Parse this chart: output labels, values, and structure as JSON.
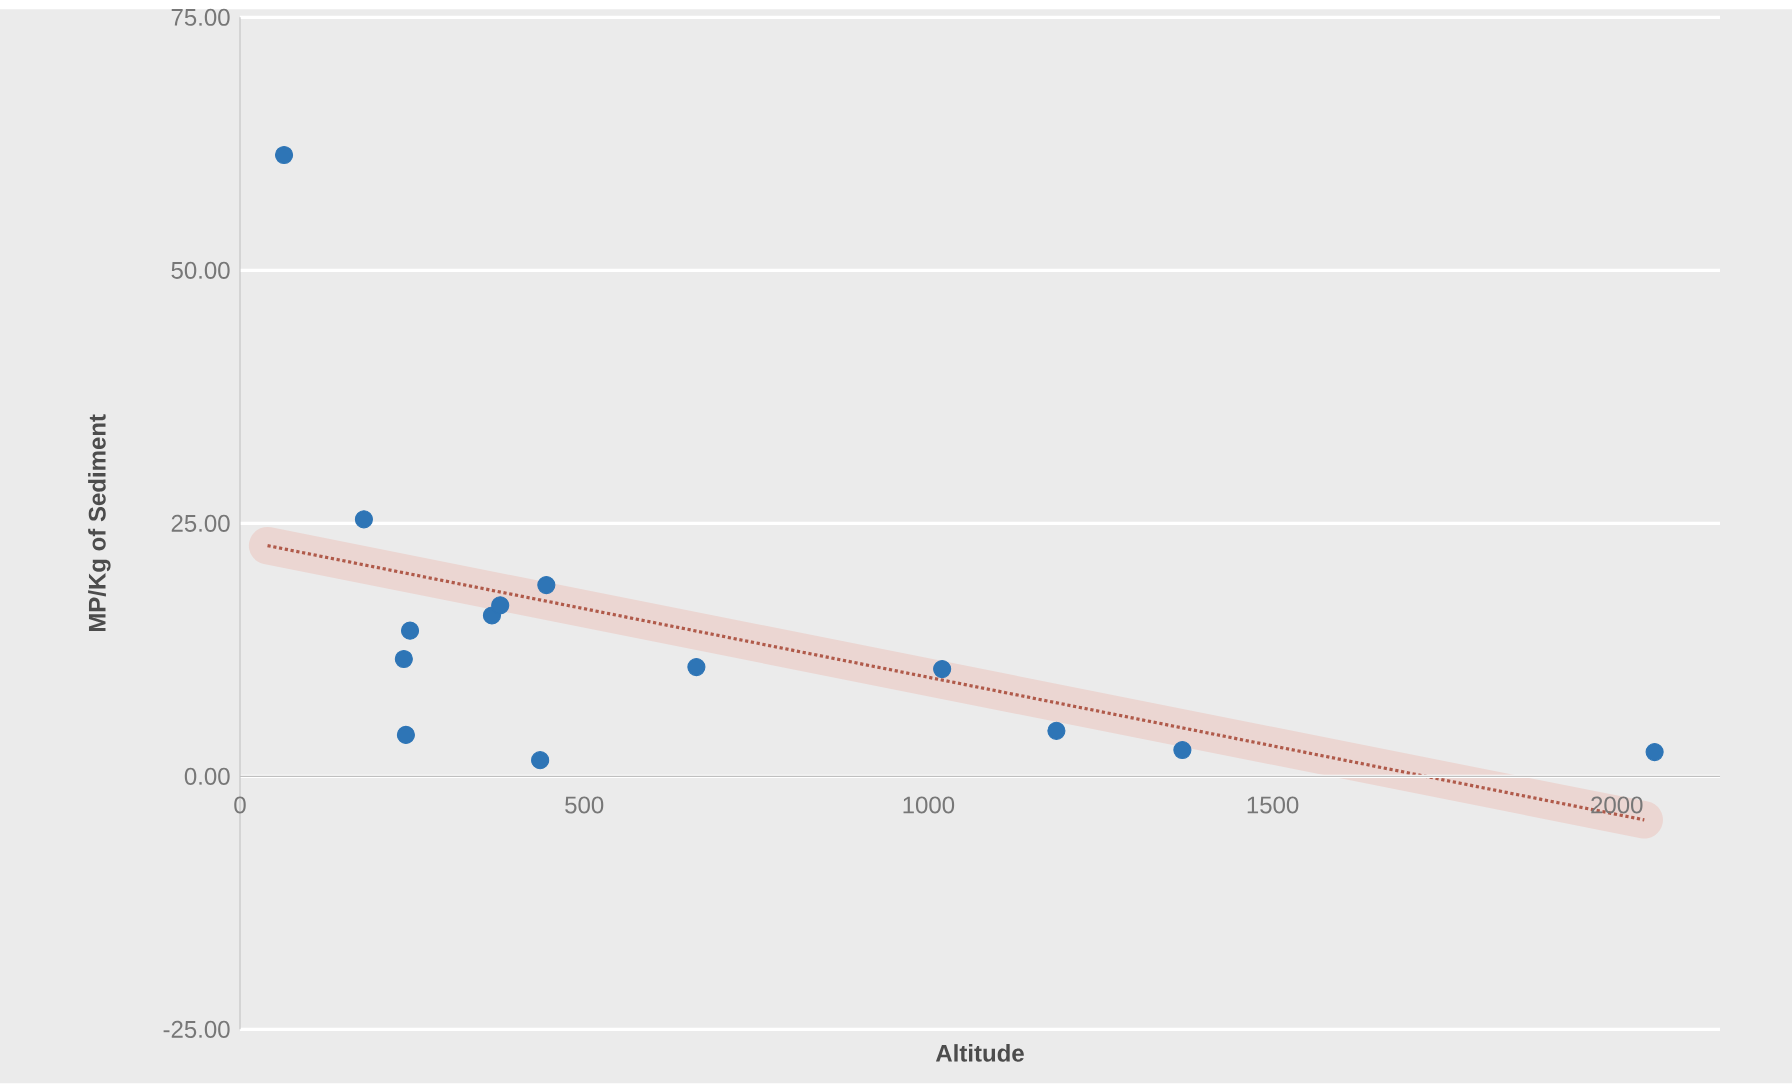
{
  "chart_data": {
    "type": "scatter",
    "xlabel": "Altitude",
    "ylabel": "MP/Kg of Sediment",
    "xlim": [
      0,
      2150
    ],
    "xticks": [
      0,
      500,
      1000,
      1500,
      2000
    ],
    "ylim": [
      -25,
      75
    ],
    "yticks": [
      {
        "value": -25,
        "label": "-25.00"
      },
      {
        "value": 0,
        "label": "0.00"
      },
      {
        "value": 25,
        "label": "25.00"
      },
      {
        "value": 50,
        "label": "50.00"
      },
      {
        "value": 75,
        "label": "75.00"
      }
    ],
    "grid": "y",
    "series": [
      {
        "marker": "circle",
        "color": "#2e75b6",
        "x": [
          64,
          180,
          247,
          238,
          241,
          436,
          366,
          378,
          445,
          663,
          1020,
          1186,
          1369,
          2055
        ],
        "values": [
          61.4,
          25.4,
          14.4,
          11.6,
          4.1,
          1.6,
          15.9,
          16.9,
          18.9,
          10.8,
          10.6,
          4.5,
          2.6,
          2.4
        ]
      },
      {
        "type": "line",
        "line_style": "dotted",
        "marker": "none",
        "color": "#b05a4a",
        "x": [
          40,
          2040
        ],
        "values": [
          22.8,
          -4.3
        ]
      }
    ]
  }
}
